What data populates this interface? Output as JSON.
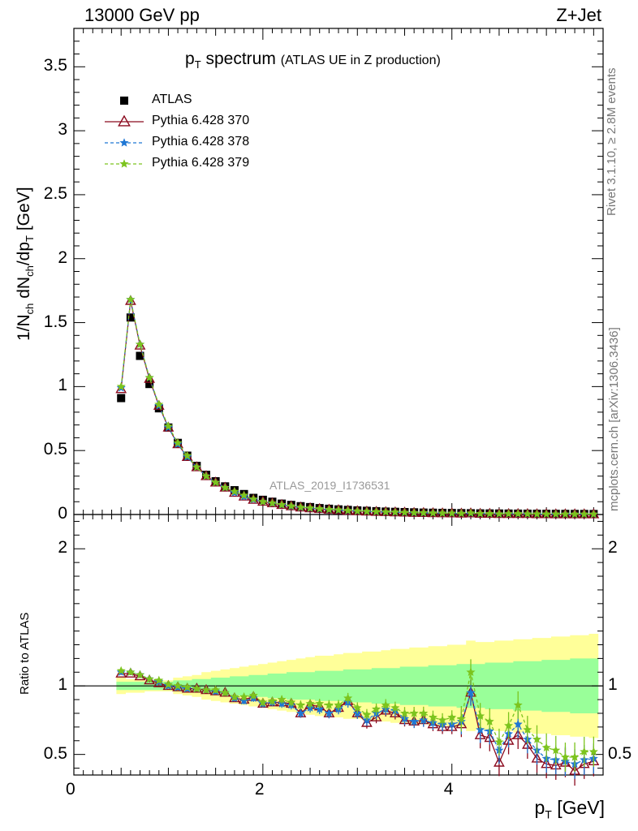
{
  "header": {
    "energy": "13000 GeV pp",
    "process": "Z+Jet",
    "plot_title": "p",
    "plot_title_sub": "T",
    "plot_title_rest": " spectrum",
    "plot_title_paren": "(ATLAS UE in Z production)",
    "watermark": "ATLAS_2019_I1736531"
  },
  "side_labels": {
    "rivet": "Rivet 3.1.10, ≥ 2.8M events",
    "mcplots": "mcplots.cern.ch [arXiv:1306.3436]"
  },
  "legend": [
    {
      "label": "ATLAS",
      "color": "#000000",
      "marker": "square"
    },
    {
      "label": "Pythia 6.428 370",
      "color": "#8b0a1e",
      "marker": "triangle"
    },
    {
      "label": "Pythia 6.428 378",
      "color": "#1f77d4",
      "marker": "star"
    },
    {
      "label": "Pythia 6.428 379",
      "color": "#7cc41e",
      "marker": "star"
    }
  ],
  "axes": {
    "main_ylabel": "1/N",
    "main_ylabel_full": "1/Nch dNch/dpT [GeV]",
    "ratio_ylabel": "Ratio to ATLAS",
    "xlabel": "p",
    "xlabel_sub": "T",
    "xlabel_unit": "[GeV]",
    "main_yticks": [
      "0",
      "0.5",
      "1",
      "1.5",
      "2",
      "2.5",
      "3",
      "3.5"
    ],
    "ratio_yticks": [
      "0.5",
      "1",
      "2"
    ],
    "xticks": [
      "0",
      "2",
      "4"
    ]
  },
  "chart_data": [
    {
      "type": "scatter",
      "panel": "main",
      "xlabel": "pT [GeV]",
      "ylabel": "1/Nch dNch/dpT [GeV]",
      "xlim": [
        0,
        5.6
      ],
      "ylim": [
        0,
        3.8
      ],
      "x": [
        0.5,
        0.6,
        0.7,
        0.8,
        0.9,
        1.0,
        1.1,
        1.2,
        1.3,
        1.4,
        1.5,
        1.6,
        1.7,
        1.8,
        1.9,
        2.0,
        2.1,
        2.2,
        2.3,
        2.4,
        2.5,
        2.6,
        2.7,
        2.8,
        2.9,
        3.0,
        3.1,
        3.2,
        3.3,
        3.4,
        3.5,
        3.6,
        3.7,
        3.8,
        3.9,
        4.0,
        4.1,
        4.2,
        4.3,
        4.4,
        4.5,
        4.6,
        4.7,
        4.8,
        4.9,
        5.0,
        5.1,
        5.2,
        5.3,
        5.4,
        5.5
      ],
      "series": [
        {
          "name": "ATLAS",
          "values": [
            0.91,
            1.54,
            1.24,
            1.02,
            0.83,
            0.68,
            0.56,
            0.46,
            0.38,
            0.31,
            0.26,
            0.22,
            0.19,
            0.16,
            0.13,
            0.115,
            0.1,
            0.085,
            0.075,
            0.065,
            0.058,
            0.05,
            0.045,
            0.04,
            0.036,
            0.032,
            0.029,
            0.026,
            0.023,
            0.021,
            0.019,
            0.017,
            0.015,
            0.014,
            0.013,
            0.012,
            0.011,
            0.01,
            0.009,
            0.0085,
            0.008,
            0.0075,
            0.007,
            0.0065,
            0.006,
            0.0056,
            0.0052,
            0.0049,
            0.0046,
            0.0043,
            0.004
          ]
        },
        {
          "name": "Pythia 6.428 370",
          "values": [
            0.98,
            1.67,
            1.32,
            1.06,
            0.85,
            0.68,
            0.55,
            0.45,
            0.37,
            0.3,
            0.25,
            0.21,
            0.17,
            0.14,
            0.115,
            0.1,
            0.088,
            0.075,
            0.065,
            0.055,
            0.049,
            0.043,
            0.038,
            0.034,
            0.03,
            0.026,
            0.023,
            0.021,
            0.019,
            0.017,
            0.015,
            0.013,
            0.012,
            0.011,
            0.0098,
            0.0088,
            0.0079,
            0.0095,
            0.006,
            0.0055,
            0.0035,
            0.0045,
            0.0045,
            0.0037,
            0.0028,
            0.0024,
            0.0022,
            0.0021,
            0.0018,
            0.0019,
            0.0018
          ]
        },
        {
          "name": "Pythia 6.428 378",
          "values": [
            0.99,
            1.68,
            1.33,
            1.07,
            0.85,
            0.68,
            0.55,
            0.45,
            0.37,
            0.3,
            0.25,
            0.21,
            0.17,
            0.14,
            0.116,
            0.1,
            0.088,
            0.075,
            0.064,
            0.054,
            0.048,
            0.042,
            0.037,
            0.033,
            0.029,
            0.026,
            0.023,
            0.021,
            0.019,
            0.017,
            0.015,
            0.013,
            0.012,
            0.011,
            0.0098,
            0.0088,
            0.0079,
            0.0095,
            0.0062,
            0.0057,
            0.0042,
            0.0049,
            0.0052,
            0.004,
            0.0032,
            0.0026,
            0.0024,
            0.0022,
            0.002,
            0.002,
            0.0019
          ]
        },
        {
          "name": "Pythia 6.428 379",
          "values": [
            1.0,
            1.68,
            1.33,
            1.07,
            0.86,
            0.69,
            0.56,
            0.46,
            0.37,
            0.3,
            0.25,
            0.21,
            0.18,
            0.15,
            0.12,
            0.1,
            0.089,
            0.076,
            0.066,
            0.056,
            0.05,
            0.044,
            0.039,
            0.035,
            0.031,
            0.027,
            0.024,
            0.022,
            0.02,
            0.018,
            0.016,
            0.014,
            0.013,
            0.011,
            0.01,
            0.0092,
            0.0082,
            0.011,
            0.0066,
            0.006,
            0.0046,
            0.0055,
            0.006,
            0.0045,
            0.0036,
            0.003,
            0.0027,
            0.0024,
            0.0022,
            0.0023,
            0.0021
          ]
        }
      ]
    },
    {
      "type": "line",
      "panel": "ratio",
      "xlabel": "pT [GeV]",
      "ylabel": "Ratio to ATLAS",
      "xlim": [
        0,
        5.6
      ],
      "ylim": [
        0.35,
        2.25
      ],
      "x": [
        0.5,
        0.6,
        0.7,
        0.8,
        0.9,
        1.0,
        1.1,
        1.2,
        1.3,
        1.4,
        1.5,
        1.6,
        1.7,
        1.8,
        1.9,
        2.0,
        2.1,
        2.2,
        2.3,
        2.4,
        2.5,
        2.6,
        2.7,
        2.8,
        2.9,
        3.0,
        3.1,
        3.2,
        3.3,
        3.4,
        3.5,
        3.6,
        3.7,
        3.8,
        3.9,
        4.0,
        4.1,
        4.2,
        4.3,
        4.4,
        4.5,
        4.6,
        4.7,
        4.8,
        4.9,
        5.0,
        5.1,
        5.2,
        5.3,
        5.4,
        5.5
      ],
      "band_stat_halfwidth": [
        0.03,
        0.03,
        0.03,
        0.03,
        0.03,
        0.03,
        0.04,
        0.04,
        0.05,
        0.05,
        0.06,
        0.06,
        0.07,
        0.07,
        0.08,
        0.08,
        0.09,
        0.09,
        0.1,
        0.1,
        0.1,
        0.11,
        0.11,
        0.11,
        0.12,
        0.12,
        0.12,
        0.13,
        0.13,
        0.13,
        0.14,
        0.14,
        0.14,
        0.15,
        0.15,
        0.15,
        0.16,
        0.16,
        0.16,
        0.17,
        0.17,
        0.17,
        0.18,
        0.18,
        0.18,
        0.19,
        0.19,
        0.19,
        0.2,
        0.2,
        0.2
      ],
      "band_total_halfwidth": [
        0.06,
        0.05,
        0.05,
        0.04,
        0.04,
        0.04,
        0.06,
        0.07,
        0.08,
        0.1,
        0.11,
        0.12,
        0.13,
        0.14,
        0.15,
        0.16,
        0.17,
        0.18,
        0.19,
        0.2,
        0.21,
        0.22,
        0.22,
        0.23,
        0.24,
        0.24,
        0.25,
        0.25,
        0.26,
        0.27,
        0.27,
        0.28,
        0.28,
        0.29,
        0.29,
        0.3,
        0.3,
        0.33,
        0.32,
        0.32,
        0.33,
        0.33,
        0.34,
        0.34,
        0.35,
        0.35,
        0.36,
        0.36,
        0.37,
        0.37,
        0.38
      ],
      "series": [
        {
          "name": "Pythia 6.428 370",
          "values": [
            1.09,
            1.09,
            1.07,
            1.04,
            1.02,
            1.0,
            0.99,
            0.98,
            0.98,
            0.97,
            0.96,
            0.95,
            0.91,
            0.9,
            0.92,
            0.87,
            0.88,
            0.88,
            0.87,
            0.8,
            0.86,
            0.85,
            0.8,
            0.84,
            0.89,
            0.8,
            0.73,
            0.77,
            0.82,
            0.8,
            0.75,
            0.74,
            0.75,
            0.72,
            0.7,
            0.7,
            0.72,
            0.95,
            0.64,
            0.62,
            0.44,
            0.6,
            0.64,
            0.57,
            0.47,
            0.43,
            0.42,
            0.44,
            0.38,
            0.43,
            0.45
          ]
        },
        {
          "name": "Pythia 6.428 378",
          "values": [
            1.1,
            1.1,
            1.08,
            1.05,
            1.03,
            1.0,
            0.99,
            0.98,
            0.98,
            0.97,
            0.96,
            0.95,
            0.91,
            0.89,
            0.91,
            0.87,
            0.88,
            0.87,
            0.86,
            0.8,
            0.84,
            0.83,
            0.8,
            0.83,
            0.88,
            0.8,
            0.75,
            0.8,
            0.83,
            0.82,
            0.76,
            0.74,
            0.75,
            0.73,
            0.72,
            0.72,
            0.74,
            0.95,
            0.68,
            0.67,
            0.53,
            0.65,
            0.72,
            0.61,
            0.53,
            0.47,
            0.46,
            0.45,
            0.43,
            0.46,
            0.47
          ]
        },
        {
          "name": "Pythia 6.428 379",
          "values": [
            1.11,
            1.1,
            1.08,
            1.05,
            1.04,
            1.01,
            1.0,
            0.99,
            0.98,
            0.97,
            0.97,
            0.95,
            0.92,
            0.92,
            0.93,
            0.88,
            0.89,
            0.9,
            0.88,
            0.86,
            0.87,
            0.87,
            0.86,
            0.86,
            0.91,
            0.84,
            0.79,
            0.83,
            0.86,
            0.84,
            0.8,
            0.8,
            0.8,
            0.77,
            0.75,
            0.77,
            0.76,
            1.1,
            0.78,
            0.74,
            0.59,
            0.71,
            0.86,
            0.68,
            0.61,
            0.55,
            0.53,
            0.48,
            0.48,
            0.52,
            0.52
          ]
        }
      ]
    }
  ]
}
